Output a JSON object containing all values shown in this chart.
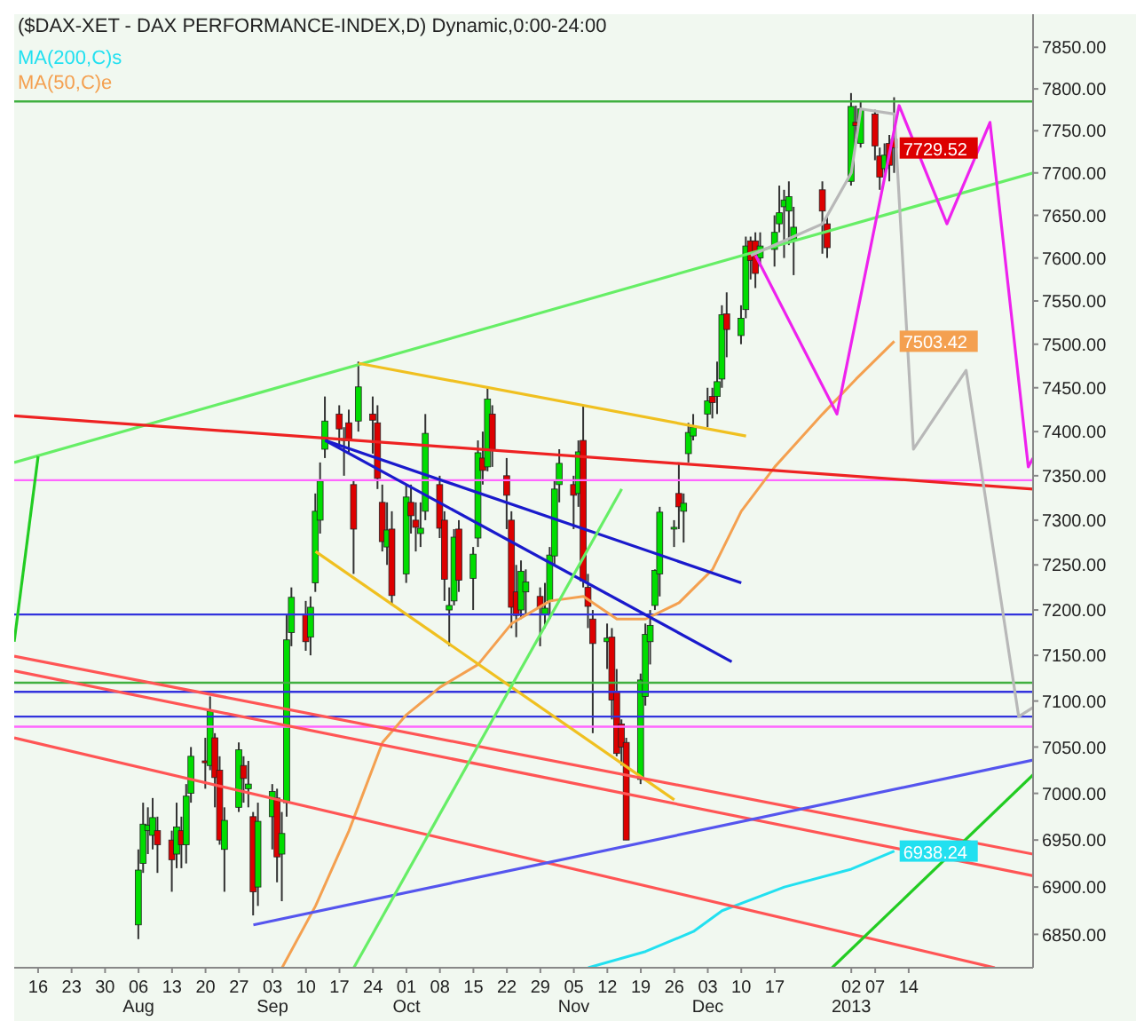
{
  "chart_data": {
    "type": "candlestick",
    "title": "($DAX-XET - DAX PERFORMANCE-INDEX,D) Dynamic,0:00-24:00",
    "log": "y",
    "legend": "top left",
    "xlim": [
      "2012-07-11",
      "2013-02-09"
    ],
    "xticks": [
      {
        "value": "2012-07-16",
        "label": "16"
      },
      {
        "value": "2012-07-23",
        "label": "23"
      },
      {
        "value": "2012-07-30",
        "label": "30"
      },
      {
        "value": "2012-08-06",
        "label": "06\nAug"
      },
      {
        "value": "2012-08-13",
        "label": "13"
      },
      {
        "value": "2012-08-20",
        "label": "20"
      },
      {
        "value": "2012-08-27",
        "label": "27"
      },
      {
        "value": "2012-09-03",
        "label": "03\nSep"
      },
      {
        "value": "2012-09-10",
        "label": "10"
      },
      {
        "value": "2012-09-17",
        "label": "17"
      },
      {
        "value": "2012-09-24",
        "label": "24"
      },
      {
        "value": "2012-10-01",
        "label": "01\nOct"
      },
      {
        "value": "2012-10-08",
        "label": "08"
      },
      {
        "value": "2012-10-15",
        "label": "15"
      },
      {
        "value": "2012-10-22",
        "label": "22"
      },
      {
        "value": "2012-10-29",
        "label": "29"
      },
      {
        "value": "2012-11-05",
        "label": "05\nNov"
      },
      {
        "value": "2012-11-12",
        "label": "12"
      },
      {
        "value": "2012-11-19",
        "label": "19"
      },
      {
        "value": "2012-11-26",
        "label": "26"
      },
      {
        "value": "2012-12-03",
        "label": "03\nDec"
      },
      {
        "value": "2012-12-10",
        "label": "10"
      },
      {
        "value": "2012-12-17",
        "label": "17"
      },
      {
        "value": "2013-01-02",
        "label": "02\n2013"
      },
      {
        "value": "2013-01-07",
        "label": "07"
      },
      {
        "value": "2013-01-14",
        "label": "14"
      }
    ],
    "ylim": [
      6815,
      7890
    ],
    "yticks": [
      {
        "value": 6850,
        "label": "6850.00"
      },
      {
        "value": 6900,
        "label": "6900.00"
      },
      {
        "value": 6950,
        "label": "6950.00"
      },
      {
        "value": 7000,
        "label": "7000.00"
      },
      {
        "value": 7050,
        "label": "7050.00"
      },
      {
        "value": 7100,
        "label": "7100.00"
      },
      {
        "value": 7150,
        "label": "7150.00"
      },
      {
        "value": 7200,
        "label": "7200.00"
      },
      {
        "value": 7250,
        "label": "7250.00"
      },
      {
        "value": 7300,
        "label": "7300.00"
      },
      {
        "value": 7350,
        "label": "7350.00"
      },
      {
        "value": 7400,
        "label": "7400.00"
      },
      {
        "value": 7450,
        "label": "7450.00"
      },
      {
        "value": 7500,
        "label": "7500.00"
      },
      {
        "value": 7550,
        "label": "7550.00"
      },
      {
        "value": 7600,
        "label": "7600.00"
      },
      {
        "value": 7650,
        "label": "7650.00"
      },
      {
        "value": 7700,
        "label": "7700.00"
      },
      {
        "value": 7750,
        "label": "7750.00"
      },
      {
        "value": 7800,
        "label": "7800.00"
      },
      {
        "value": 7850,
        "label": "7850.00"
      }
    ],
    "ref_lines": [
      {
        "axis": "y",
        "value": 7785,
        "color": "#40b040"
      },
      {
        "axis": "y",
        "value": 7345,
        "color": "#ff66ff"
      },
      {
        "axis": "y",
        "value": 7195,
        "color": "#3333dd"
      },
      {
        "axis": "y",
        "value": 7120,
        "color": "#40b040"
      },
      {
        "axis": "y",
        "value": 7110,
        "color": "#3333dd"
      },
      {
        "axis": "y",
        "value": 7083,
        "color": "#3333dd"
      },
      {
        "axis": "y",
        "value": 7072,
        "color": "#ff66ff"
      }
    ],
    "annotations": [
      {
        "text": "7729.52",
        "x": "2013-01-11",
        "y": 7729.52
      },
      {
        "text": "7503.42",
        "x": "2013-01-11",
        "y": 7503.42
      },
      {
        "text": "6938.24",
        "x": "2013-01-11",
        "y": 6938.24
      }
    ],
    "series": [
      {
        "x": [
          "2012-08-06",
          "2012-08-07",
          "2012-08-08",
          "2012-08-09",
          "2012-08-10",
          "2012-08-13",
          "2012-08-14",
          "2012-08-15",
          "2012-08-16",
          "2012-08-17",
          "2012-08-20",
          "2012-08-21",
          "2012-08-22",
          "2012-08-23",
          "2012-08-24",
          "2012-08-27",
          "2012-08-28",
          "2012-08-29",
          "2012-08-30",
          "2012-08-31",
          "2012-09-03",
          "2012-09-04",
          "2012-09-05",
          "2012-09-06",
          "2012-09-07",
          "2012-09-10",
          "2012-09-11",
          "2012-09-12",
          "2012-09-13",
          "2012-09-14",
          "2012-09-17",
          "2012-09-18",
          "2012-09-19",
          "2012-09-20",
          "2012-09-21",
          "2012-09-24",
          "2012-09-25",
          "2012-09-26",
          "2012-09-27",
          "2012-09-28",
          "2012-10-01",
          "2012-10-02",
          "2012-10-03",
          "2012-10-04",
          "2012-10-05",
          "2012-10-08",
          "2012-10-09",
          "2012-10-10",
          "2012-10-11",
          "2012-10-12",
          "2012-10-15",
          "2012-10-16",
          "2012-10-17",
          "2012-10-18",
          "2012-10-19",
          "2012-10-22",
          "2012-10-23",
          "2012-10-24",
          "2012-10-25",
          "2012-10-26",
          "2012-10-29",
          "2012-10-30",
          "2012-10-31",
          "2012-11-01",
          "2012-11-02",
          "2012-11-05",
          "2012-11-06",
          "2012-11-07",
          "2012-11-08",
          "2012-11-09",
          "2012-11-12",
          "2012-11-13",
          "2012-11-14",
          "2012-11-15",
          "2012-11-16",
          "2012-11-19",
          "2012-11-20",
          "2012-11-21",
          "2012-11-22",
          "2012-11-23",
          "2012-11-26",
          "2012-11-27",
          "2012-11-28",
          "2012-11-29",
          "2012-11-30",
          "2012-12-03",
          "2012-12-04",
          "2012-12-05",
          "2012-12-06",
          "2012-12-07",
          "2012-12-10",
          "2012-12-11",
          "2012-12-12",
          "2012-12-13",
          "2012-12-14",
          "2012-12-17",
          "2012-12-18",
          "2012-12-19",
          "2012-12-20",
          "2012-12-21",
          "2012-12-27",
          "2012-12-28",
          "2013-01-02",
          "2013-01-03",
          "2013-01-04",
          "2013-01-07",
          "2013-01-08",
          "2013-01-09",
          "2013-01-10",
          "2013-01-11"
        ],
        "ohlc": [
          [
            6860,
            6940,
            6845,
            6918
          ],
          [
            6925,
            6990,
            6915,
            6967
          ],
          [
            6960,
            6985,
            6935,
            6966
          ],
          [
            6955,
            6995,
            6940,
            6974
          ],
          [
            6960,
            6975,
            6915,
            6945
          ],
          [
            6950,
            6960,
            6895,
            6929
          ],
          [
            6935,
            6990,
            6920,
            6964
          ],
          [
            6960,
            6975,
            6920,
            6945
          ],
          [
            6945,
            7010,
            6925,
            6997
          ],
          [
            7000,
            7050,
            6990,
            7040
          ],
          [
            7035,
            7060,
            7005,
            7033
          ],
          [
            7030,
            7105,
            7025,
            7089
          ],
          [
            7060,
            7065,
            6985,
            7017
          ],
          [
            7025,
            7040,
            6945,
            6950
          ],
          [
            6940,
            6985,
            6895,
            6971
          ],
          [
            6985,
            7055,
            6980,
            7047
          ],
          [
            7030,
            7040,
            6990,
            7016
          ],
          [
            7005,
            7035,
            6985,
            7010
          ],
          [
            6975,
            6980,
            6870,
            6895
          ],
          [
            6900,
            6990,
            6880,
            6970
          ],
          [
            6975,
            7010,
            6940,
            7002
          ],
          [
            6995,
            7005,
            6905,
            6932
          ],
          [
            6935,
            6980,
            6885,
            6957
          ],
          [
            6990,
            7195,
            6975,
            7167
          ],
          [
            7175,
            7225,
            7160,
            7214
          ],
          [
            7195,
            7210,
            7155,
            7165
          ],
          [
            7170,
            7215,
            7150,
            7203
          ],
          [
            7230,
            7330,
            7220,
            7310
          ],
          [
            7300,
            7365,
            7285,
            7344
          ],
          [
            7380,
            7440,
            7370,
            7412
          ],
          [
            7420,
            7430,
            7380,
            7403
          ],
          [
            7390,
            7405,
            7350,
            7392
          ],
          [
            7410,
            7425,
            7375,
            7390
          ],
          [
            7340,
            7345,
            7240,
            7290
          ],
          [
            7412,
            7480,
            7400,
            7451
          ],
          [
            7420,
            7440,
            7375,
            7413
          ],
          [
            7410,
            7430,
            7335,
            7347
          ],
          [
            7320,
            7340,
            7265,
            7276
          ],
          [
            7270,
            7320,
            7250,
            7289
          ],
          [
            7290,
            7310,
            7205,
            7216
          ],
          [
            7240,
            7340,
            7230,
            7326
          ],
          [
            7320,
            7340,
            7285,
            7305
          ],
          [
            7300,
            7320,
            7265,
            7292
          ],
          [
            7285,
            7320,
            7270,
            7291
          ],
          [
            7310,
            7420,
            7300,
            7398
          ],
          [
            7340,
            7350,
            7280,
            7291
          ],
          [
            7300,
            7310,
            7210,
            7234
          ],
          [
            7200,
            7225,
            7160,
            7205
          ],
          [
            7210,
            7290,
            7205,
            7281
          ],
          [
            7290,
            7300,
            7220,
            7233
          ],
          [
            7235,
            7270,
            7200,
            7262
          ],
          [
            7280,
            7390,
            7270,
            7376
          ],
          [
            7370,
            7400,
            7340,
            7356
          ],
          [
            7360,
            7450,
            7355,
            7437
          ],
          [
            7420,
            7430,
            7360,
            7380
          ],
          [
            7350,
            7370,
            7290,
            7328
          ],
          [
            7300,
            7310,
            7180,
            7203
          ],
          [
            7220,
            7250,
            7170,
            7194
          ],
          [
            7200,
            7255,
            7190,
            7243
          ],
          [
            7220,
            7245,
            7195,
            7231
          ],
          [
            7215,
            7225,
            7160,
            7203
          ],
          [
            7195,
            7230,
            7180,
            7202
          ],
          [
            7210,
            7270,
            7190,
            7261
          ],
          [
            7260,
            7345,
            7250,
            7335
          ],
          [
            7340,
            7380,
            7320,
            7364
          ],
          [
            7340,
            7350,
            7290,
            7328
          ],
          [
            7330,
            7390,
            7315,
            7377
          ],
          [
            7390,
            7430,
            7225,
            7232
          ],
          [
            7225,
            7240,
            7180,
            7204
          ],
          [
            7190,
            7200,
            7065,
            7163
          ],
          [
            7165,
            7185,
            7135,
            7169
          ],
          [
            7170,
            7180,
            7080,
            7101
          ],
          [
            7110,
            7135,
            7040,
            7043
          ],
          [
            7075,
            7080,
            7030,
            7050
          ],
          [
            7055,
            7060,
            6950,
            6950
          ],
          [
            7015,
            7130,
            7010,
            7123
          ],
          [
            7105,
            7185,
            7095,
            7173
          ],
          [
            7165,
            7200,
            7140,
            7183
          ],
          [
            7205,
            7245,
            7200,
            7244
          ],
          [
            7240,
            7315,
            7215,
            7309
          ],
          [
            7290,
            7300,
            7270,
            7292
          ],
          [
            7330,
            7365,
            7290,
            7315
          ],
          [
            7310,
            7330,
            7275,
            7319
          ],
          [
            7375,
            7410,
            7365,
            7399
          ],
          [
            7395,
            7420,
            7390,
            7405
          ],
          [
            7420,
            7450,
            7405,
            7435
          ],
          [
            7440,
            7450,
            7415,
            7433
          ],
          [
            7440,
            7480,
            7420,
            7457
          ],
          [
            7460,
            7545,
            7450,
            7534
          ],
          [
            7535,
            7560,
            7485,
            7517
          ],
          [
            7510,
            7545,
            7500,
            7530
          ],
          [
            7540,
            7625,
            7530,
            7614
          ],
          [
            7620,
            7625,
            7575,
            7597
          ],
          [
            7620,
            7630,
            7565,
            7582
          ],
          [
            7600,
            7630,
            7590,
            7614
          ],
          [
            7610,
            7650,
            7590,
            7630
          ],
          [
            7640,
            7685,
            7630,
            7653
          ],
          [
            7660,
            7680,
            7600,
            7668
          ],
          [
            7655,
            7690,
            7615,
            7672
          ],
          [
            7620,
            7660,
            7580,
            7636
          ],
          [
            7680,
            7690,
            7605,
            7655
          ],
          [
            7640,
            7650,
            7600,
            7612
          ],
          [
            7690,
            7795,
            7685,
            7779
          ],
          [
            7760,
            7780,
            7740,
            7756
          ],
          [
            7735,
            7785,
            7730,
            7776
          ],
          [
            7770,
            7775,
            7715,
            7732
          ],
          [
            7720,
            7730,
            7680,
            7695
          ],
          [
            7705,
            7735,
            7695,
            7721
          ],
          [
            7735,
            7745,
            7690,
            7709
          ],
          [
            7740,
            7790,
            7700,
            7729.52
          ]
        ],
        "colors": [
          "#00dd00",
          "#00dd00",
          "#00dd00",
          "#00dd00",
          "#dd0000",
          "#dd0000",
          "#00dd00",
          "#dd0000",
          "#00dd00",
          "#00dd00",
          "#dd0000",
          "#00dd00",
          "#dd0000",
          "#dd0000",
          "#00dd00",
          "#00dd00",
          "#dd0000",
          "#00dd00",
          "#dd0000",
          "#00dd00",
          "#00dd00",
          "#dd0000",
          "#00dd00",
          "#00dd00",
          "#00dd00",
          "#dd0000",
          "#00dd00",
          "#00dd00",
          "#00dd00",
          "#00dd00",
          "#dd0000",
          "#00dd00",
          "#dd0000",
          "#dd0000",
          "#00dd00",
          "#dd0000",
          "#dd0000",
          "#dd0000",
          "#00dd00",
          "#dd0000",
          "#00dd00",
          "#dd0000",
          "#dd0000",
          "#00dd00",
          "#00dd00",
          "#dd0000",
          "#dd0000",
          "#00dd00",
          "#00dd00",
          "#dd0000",
          "#00dd00",
          "#00dd00",
          "#dd0000",
          "#00dd00",
          "#dd0000",
          "#dd0000",
          "#dd0000",
          "#dd0000",
          "#00dd00",
          "#00dd00",
          "#dd0000",
          "#00dd00",
          "#00dd00",
          "#00dd00",
          "#00dd00",
          "#dd0000",
          "#00dd00",
          "#dd0000",
          "#dd0000",
          "#dd0000",
          "#00dd00",
          "#dd0000",
          "#dd0000",
          "#dd0000",
          "#dd0000",
          "#00dd00",
          "#00dd00",
          "#00dd00",
          "#00dd00",
          "#00dd00",
          "#00dd00",
          "#dd0000",
          "#00dd00",
          "#00dd00",
          "#00dd00",
          "#00dd00",
          "#dd0000",
          "#00dd00",
          "#00dd00",
          "#dd0000",
          "#00dd00",
          "#00dd00",
          "#dd0000",
          "#dd0000",
          "#00dd00",
          "#00dd00",
          "#00dd00",
          "#00dd00",
          "#00dd00",
          "#00dd00",
          "#dd0000",
          "#dd0000",
          "#00dd00",
          "#dd0000",
          "#00dd00",
          "#dd0000",
          "#dd0000",
          "#00dd00",
          "#dd0000",
          "#dd0000"
        ]
      },
      {
        "type": "line",
        "name": "MA(200,C)s",
        "color": "#22e0f0",
        "x": [
          "2012-11-08",
          "2012-11-20",
          "2012-11-30",
          "2012-12-06",
          "2012-12-19",
          "2013-01-02",
          "2013-01-11"
        ],
        "values": [
          6815,
          6832,
          6853,
          6875,
          6900,
          6919,
          6938.24
        ]
      },
      {
        "type": "line",
        "name": "MA(50,C)e",
        "color": "#f4a050",
        "x": [
          "2012-09-05",
          "2012-09-12",
          "2012-09-19",
          "2012-09-26",
          "2012-10-01",
          "2012-10-08",
          "2012-10-16",
          "2012-10-23",
          "2012-10-31",
          "2012-11-07",
          "2012-11-14",
          "2012-11-20",
          "2012-11-27",
          "2012-12-04",
          "2012-12-10",
          "2012-12-17",
          "2012-12-27",
          "2013-01-03",
          "2013-01-11"
        ],
        "values": [
          6815,
          6880,
          6960,
          7055,
          7085,
          7115,
          7140,
          7185,
          7210,
          7215,
          7190,
          7190,
          7208,
          7245,
          7310,
          7360,
          7420,
          7460,
          7503.42
        ]
      },
      {
        "type": "line",
        "color": "#66ee66",
        "x": [
          "2012-07-11",
          "2013-02-09"
        ],
        "values": [
          7365,
          7700
        ]
      },
      {
        "type": "line",
        "color": "#ee2222",
        "x": [
          "2012-07-11",
          "2013-02-09"
        ],
        "values": [
          7418,
          7335
        ]
      },
      {
        "type": "line",
        "color": "#f0c020",
        "x": [
          "2012-09-21",
          "2012-12-11"
        ],
        "values": [
          7478,
          7395
        ]
      },
      {
        "type": "line",
        "color": "#f0c020",
        "x": [
          "2012-09-12",
          "2012-11-26"
        ],
        "values": [
          7265,
          6993
        ]
      },
      {
        "type": "line",
        "color": "#1a1acc",
        "x": [
          "2012-09-14",
          "2012-12-10"
        ],
        "values": [
          7390,
          7230
        ]
      },
      {
        "type": "line",
        "color": "#1a1acc",
        "x": [
          "2012-09-14",
          "2012-12-08"
        ],
        "values": [
          7390,
          7143
        ]
      },
      {
        "type": "line",
        "color": "#ff5555",
        "x": [
          "2012-07-11",
          "2013-02-09"
        ],
        "values": [
          7149,
          6935
        ]
      },
      {
        "type": "line",
        "color": "#ff5555",
        "x": [
          "2012-07-11",
          "2013-02-09"
        ],
        "values": [
          7133,
          6912
        ]
      },
      {
        "type": "line",
        "color": "#ff5555",
        "x": [
          "2012-07-11",
          "2013-02-01"
        ],
        "values": [
          7060,
          6815
        ]
      },
      {
        "type": "line",
        "color": "#5555ee",
        "x": [
          "2012-08-30",
          "2013-02-09"
        ],
        "values": [
          6860,
          7036
        ]
      },
      {
        "type": "line",
        "color": "#66ee66",
        "x": [
          "2012-09-20",
          "2012-11-15"
        ],
        "values": [
          6815,
          7335
        ]
      },
      {
        "type": "line",
        "color": "#22cc22",
        "x": [
          "2012-12-29",
          "2013-02-09"
        ],
        "values": [
          6815,
          7020
        ]
      },
      {
        "type": "line",
        "color": "#22cc22",
        "x": [
          "2012-07-11",
          "2012-07-16"
        ],
        "values": [
          7165,
          7372
        ]
      },
      {
        "type": "line",
        "color": "#b8b8b8",
        "x": [
          "2012-12-12",
          "2012-12-27",
          "2013-01-02",
          "2013-01-04",
          "2013-01-11",
          "2013-01-15",
          "2013-01-26",
          "2013-02-06",
          "2013-02-09"
        ],
        "values": [
          7603,
          7640,
          7700,
          7776,
          7770,
          7380,
          7470,
          7083,
          7093
        ]
      },
      {
        "type": "line",
        "color": "#ee22ee",
        "x": [
          "2012-12-13",
          "2012-12-30",
          "2013-01-12",
          "2013-01-22",
          "2013-01-31",
          "2013-02-08",
          "2013-02-09"
        ],
        "values": [
          7603,
          7420,
          7780,
          7640,
          7760,
          7360,
          7370
        ]
      }
    ]
  }
}
